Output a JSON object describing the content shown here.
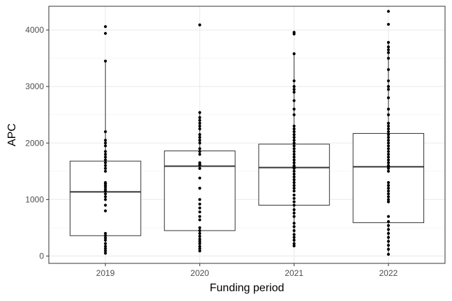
{
  "chart_data": {
    "type": "boxplot",
    "xlabel": "Funding period",
    "ylabel": "APC",
    "categories": [
      "2019",
      "2020",
      "2021",
      "2022"
    ],
    "ylim": [
      -130,
      4420
    ],
    "y_ticks": [
      0,
      1000,
      2000,
      3000,
      4000
    ],
    "y_tick_labels": [
      "0",
      "1000",
      "2000",
      "3000",
      "4000"
    ],
    "grid": true,
    "boxes": [
      {
        "category": "2019",
        "q1": 360,
        "median": 1135,
        "q3": 1680,
        "whisker_low": 50,
        "whisker_high": 3450
      },
      {
        "category": "2020",
        "q1": 450,
        "median": 1590,
        "q3": 1860,
        "whisker_low": 90,
        "whisker_high": 2540
      },
      {
        "category": "2021",
        "q1": 900,
        "median": 1565,
        "q3": 1980,
        "whisker_low": 180,
        "whisker_high": 3580
      },
      {
        "category": "2022",
        "q1": 590,
        "median": 1580,
        "q3": 2170,
        "whisker_low": 30,
        "whisker_high": 3780
      }
    ],
    "outliers": [
      {
        "category": "2019",
        "values": [
          4060,
          3940
        ]
      },
      {
        "category": "2020",
        "values": [
          4090
        ]
      },
      {
        "category": "2021",
        "values": [
          3960,
          3930
        ]
      },
      {
        "category": "2022",
        "values": [
          4330,
          4100
        ]
      }
    ],
    "points": [
      {
        "category": "2019",
        "values": [
          50,
          90,
          130,
          170,
          220,
          280,
          320,
          360,
          400,
          800,
          900,
          1000,
          1050,
          1100,
          1150,
          1180,
          1220,
          1250,
          1280,
          1300,
          1500,
          1550,
          1600,
          1650,
          1700,
          1750,
          1800,
          1850,
          1950,
          2000,
          2050,
          2200,
          3450
        ]
      },
      {
        "category": "2020",
        "values": [
          90,
          130,
          170,
          220,
          260,
          300,
          350,
          400,
          450,
          500,
          640,
          700,
          780,
          850,
          920,
          1000,
          1200,
          1380,
          1550,
          1600,
          1620,
          1650,
          1800,
          1850,
          1900,
          2000,
          2050,
          2100,
          2150,
          2250,
          2300,
          2350,
          2400,
          2450,
          2540
        ]
      },
      {
        "category": "2021",
        "values": [
          180,
          220,
          280,
          330,
          380,
          450,
          520,
          580,
          700,
          760,
          820,
          900,
          960,
          1020,
          1080,
          1150,
          1200,
          1250,
          1300,
          1350,
          1400,
          1450,
          1500,
          1550,
          1580,
          1600,
          1650,
          1700,
          1750,
          1800,
          1850,
          1900,
          1950,
          2000,
          2050,
          2100,
          2150,
          2200,
          2250,
          2300,
          2500,
          2600,
          2750,
          2900,
          2950,
          3000,
          3100,
          3580
        ]
      },
      {
        "category": "2022",
        "values": [
          30,
          120,
          190,
          260,
          330,
          400,
          470,
          540,
          610,
          700,
          960,
          1000,
          1050,
          1100,
          1150,
          1200,
          1250,
          1300,
          1500,
          1550,
          1580,
          1600,
          1650,
          1700,
          1750,
          1800,
          1850,
          1900,
          1950,
          2000,
          2050,
          2100,
          2150,
          2200,
          2250,
          2300,
          2350,
          2500,
          2600,
          2800,
          2950,
          3000,
          3100,
          3300,
          3500,
          3600,
          3650,
          3700,
          3780
        ]
      }
    ]
  }
}
